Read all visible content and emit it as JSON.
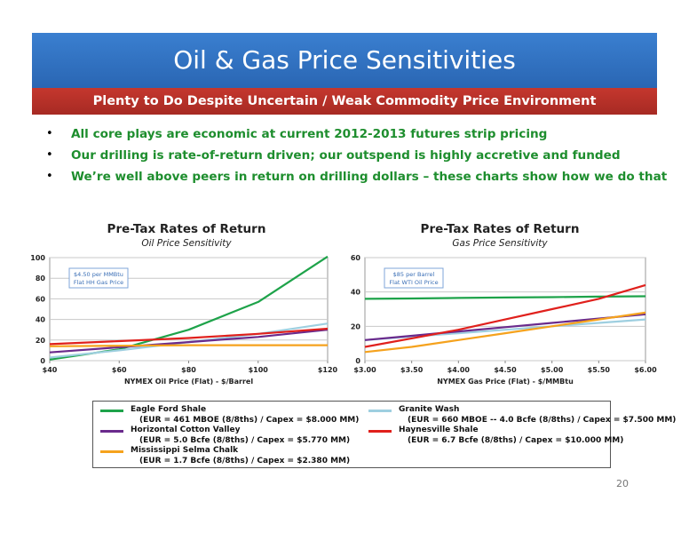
{
  "slide": {
    "title": "Oil & Gas Price Sensitivities",
    "subtitle": "Plenty to Do Despite Uncertain / Weak Commodity Price Environment",
    "bullets": [
      "All core plays are economic at current 2012-2013 futures strip pricing",
      "Our drilling is rate-of-return driven; our outspend is highly accretive and funded",
      "We’re well above peers in return on drilling dollars – these charts show how we do that"
    ],
    "bullet_glyph": "•",
    "page_number": "20"
  },
  "colors": {
    "title_band": "#2f72c4",
    "subtitle_band": "#b8322a",
    "bullet_text": "#1e8e2e"
  },
  "legend": {
    "items": [
      {
        "name": "Eagle Ford Shale",
        "detail": "(EUR = 461 MBOE (8/8ths) / Capex = $8.000 MM)",
        "color": "#1ea34a"
      },
      {
        "name": "Granite Wash",
        "detail": "(EUR = 660 MBOE -- 4.0 Bcfe (8/8ths) / Capex = $7.500 MM)",
        "color": "#9ecfe0"
      },
      {
        "name": "Horizontal Cotton Valley",
        "detail": "(EUR = 5.0 Bcfe (8/8ths) / Capex = $5.770 MM)",
        "color": "#6a2a8c"
      },
      {
        "name": "Haynesville Shale",
        "detail": "(EUR = 6.7 Bcfe (8/8ths) / Capex = $10.000 MM)",
        "color": "#e0201c"
      },
      {
        "name": "Mississippi Selma Chalk",
        "detail": "(EUR = 1.7 Bcfe (8/8ths) / Capex = $2.380 MM)",
        "color": "#f5a21d"
      }
    ]
  },
  "chart_data": [
    {
      "type": "line",
      "title": "Pre-Tax Rates of Return",
      "subtitle": "Oil Price Sensitivity",
      "xlabel": "NYMEX Oil Price (Flat) - $/Barrel",
      "ylabel": "",
      "x_tick_labels": [
        "$40",
        "$60",
        "$80",
        "$100",
        "$120"
      ],
      "y_tick_labels": [
        "0",
        "20",
        "40",
        "60",
        "80",
        "100"
      ],
      "x": [
        40,
        60,
        80,
        100,
        120
      ],
      "xlim": [
        40,
        120
      ],
      "ylim": [
        0,
        100
      ],
      "grid": true,
      "annotation": [
        "$4.50 per MMBtu",
        "Flat HH Gas Price"
      ],
      "series": [
        {
          "name": "Eagle Ford Shale",
          "color": "#1ea34a",
          "values": [
            1,
            11,
            30,
            57,
            101
          ]
        },
        {
          "name": "Granite Wash",
          "color": "#9ecfe0",
          "values": [
            3,
            10,
            18,
            26,
            36
          ]
        },
        {
          "name": "Horizontal Cotton Valley",
          "color": "#6a2a8c",
          "values": [
            8,
            13,
            18,
            23,
            30
          ]
        },
        {
          "name": "Haynesville Shale",
          "color": "#e0201c",
          "values": [
            16,
            19,
            22,
            26,
            31
          ]
        },
        {
          "name": "Mississippi Selma Chalk",
          "color": "#f5a21d",
          "values": [
            14,
            14.5,
            15,
            15,
            15
          ]
        }
      ]
    },
    {
      "type": "line",
      "title": "Pre-Tax Rates of Return",
      "subtitle": "Gas Price Sensitivity",
      "xlabel": "NYMEX Gas Price (Flat) - $/MMBtu",
      "ylabel": "",
      "x_tick_labels": [
        "$3.00",
        "$3.50",
        "$4.00",
        "$4.50",
        "$5.00",
        "$5.50",
        "$6.00"
      ],
      "y_tick_labels": [
        "0",
        "20",
        "40",
        "60"
      ],
      "x": [
        3.0,
        3.5,
        4.0,
        4.5,
        5.0,
        5.5,
        6.0
      ],
      "xlim": [
        3.0,
        6.0
      ],
      "ylim": [
        0,
        60
      ],
      "grid": true,
      "annotation": [
        "$85 per Barrel",
        "Flat WTI Oil Price"
      ],
      "series": [
        {
          "name": "Eagle Ford Shale",
          "color": "#1ea34a",
          "values": [
            36,
            36.2,
            36.5,
            36.8,
            37,
            37.3,
            37.5
          ]
        },
        {
          "name": "Granite Wash",
          "color": "#9ecfe0",
          "values": [
            12,
            14,
            16,
            18,
            20,
            22,
            24
          ]
        },
        {
          "name": "Horizontal Cotton Valley",
          "color": "#6a2a8c",
          "values": [
            12,
            14.5,
            17,
            19.5,
            22,
            24.5,
            27
          ]
        },
        {
          "name": "Haynesville Shale",
          "color": "#e0201c",
          "values": [
            8,
            13,
            18,
            24,
            30,
            36,
            44
          ]
        },
        {
          "name": "Mississippi Selma Chalk",
          "color": "#f5a21d",
          "values": [
            5,
            8,
            12,
            16,
            20,
            24,
            28
          ]
        }
      ]
    }
  ]
}
